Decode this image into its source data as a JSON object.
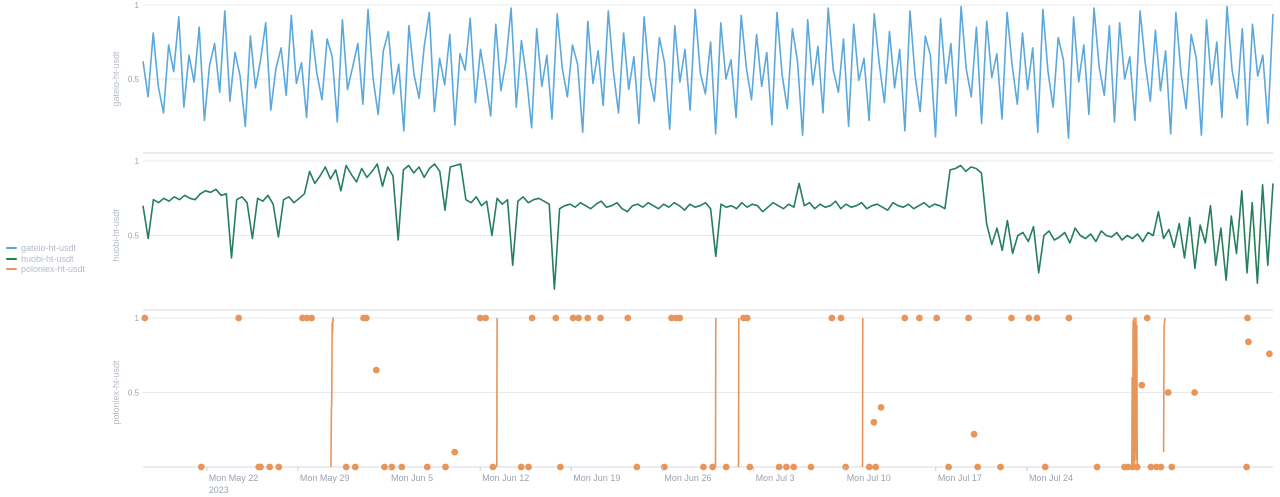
{
  "legend": {
    "items": [
      {
        "label": "gateio-ht-usdt",
        "color": "#5ba8dd"
      },
      {
        "label": "huobi-ht-usdt",
        "color": "#257f5b"
      },
      {
        "label": "poloniex-ht-usdt",
        "color": "#e8955a"
      }
    ]
  },
  "chart_data": [
    {
      "type": "line",
      "ylabel": "gateio-ht-usdt",
      "ylim": [
        0,
        1
      ],
      "yticks": [
        0.5,
        1
      ],
      "ytick_labels": [
        "0.5",
        "1"
      ],
      "series": [
        {
          "name": "gateio-ht-usdt",
          "color": "#5ba8dd",
          "values": [
            0.62,
            0.38,
            0.81,
            0.45,
            0.27,
            0.73,
            0.55,
            0.92,
            0.31,
            0.66,
            0.48,
            0.85,
            0.22,
            0.59,
            0.74,
            0.41,
            0.96,
            0.35,
            0.68,
            0.52,
            0.18,
            0.79,
            0.44,
            0.63,
            0.88,
            0.29,
            0.57,
            0.71,
            0.39,
            0.93,
            0.47,
            0.61,
            0.24,
            0.83,
            0.54,
            0.36,
            0.77,
            0.65,
            0.21,
            0.9,
            0.43,
            0.58,
            0.74,
            0.33,
            0.97,
            0.5,
            0.26,
            0.69,
            0.82,
            0.4,
            0.6,
            0.15,
            0.86,
            0.53,
            0.37,
            0.72,
            0.95,
            0.28,
            0.64,
            0.46,
            0.8,
            0.19,
            0.67,
            0.56,
            0.91,
            0.34,
            0.7,
            0.49,
            0.25,
            0.87,
            0.42,
            0.62,
            0.98,
            0.31,
            0.76,
            0.51,
            0.17,
            0.84,
            0.45,
            0.66,
            0.23,
            0.94,
            0.57,
            0.38,
            0.73,
            0.6,
            0.14,
            0.89,
            0.47,
            0.69,
            0.32,
            0.96,
            0.55,
            0.27,
            0.81,
            0.43,
            0.65,
            0.2,
            0.92,
            0.52,
            0.35,
            0.78,
            0.61,
            0.16,
            0.86,
            0.48,
            0.7,
            0.29,
            0.97,
            0.54,
            0.4,
            0.75,
            0.13,
            0.88,
            0.5,
            0.63,
            0.24,
            0.93,
            0.58,
            0.36,
            0.8,
            0.45,
            0.68,
            0.19,
            0.95,
            0.53,
            0.3,
            0.84,
            0.62,
            0.12,
            0.9,
            0.46,
            0.72,
            0.27,
            0.98,
            0.56,
            0.41,
            0.77,
            0.18,
            0.87,
            0.49,
            0.64,
            0.22,
            0.94,
            0.6,
            0.34,
            0.82,
            0.44,
            0.7,
            0.15,
            0.96,
            0.52,
            0.28,
            0.79,
            0.66,
            0.11,
            0.91,
            0.47,
            0.74,
            0.25,
            0.99,
            0.57,
            0.38,
            0.85,
            0.2,
            0.89,
            0.51,
            0.67,
            0.23,
            0.95,
            0.59,
            0.33,
            0.81,
            0.43,
            0.71,
            0.14,
            0.97,
            0.55,
            0.31,
            0.78,
            0.63,
            0.1,
            0.92,
            0.48,
            0.73,
            0.26,
            0.98,
            0.58,
            0.39,
            0.86,
            0.21,
            0.88,
            0.5,
            0.65,
            0.22,
            0.96,
            0.61,
            0.35,
            0.83,
            0.42,
            0.69,
            0.13,
            0.95,
            0.54,
            0.3,
            0.8,
            0.64,
            0.12,
            0.9,
            0.46,
            0.75,
            0.24,
            0.99,
            0.56,
            0.37,
            0.84,
            0.19,
            0.87,
            0.52,
            0.66,
            0.2,
            0.94
          ]
        }
      ],
      "grid": true
    },
    {
      "type": "line",
      "ylabel": "huobi-ht-usdt",
      "ylim": [
        0,
        1
      ],
      "yticks": [
        0.5,
        1
      ],
      "ytick_labels": [
        "0.5",
        "1"
      ],
      "series": [
        {
          "name": "huobi-ht-usdt",
          "color": "#257f5b",
          "values": [
            0.7,
            0.48,
            0.74,
            0.72,
            0.75,
            0.73,
            0.76,
            0.74,
            0.77,
            0.75,
            0.74,
            0.78,
            0.8,
            0.79,
            0.81,
            0.77,
            0.78,
            0.35,
            0.74,
            0.76,
            0.72,
            0.48,
            0.75,
            0.73,
            0.77,
            0.71,
            0.49,
            0.74,
            0.76,
            0.72,
            0.75,
            0.78,
            0.93,
            0.85,
            0.9,
            0.96,
            0.88,
            0.94,
            0.8,
            0.97,
            0.91,
            0.86,
            0.95,
            0.89,
            0.93,
            0.98,
            0.83,
            0.96,
            0.9,
            0.47,
            0.94,
            0.97,
            0.92,
            0.96,
            0.89,
            0.95,
            0.98,
            0.93,
            0.67,
            0.96,
            0.97,
            0.98,
            0.74,
            0.72,
            0.76,
            0.7,
            0.73,
            0.5,
            0.75,
            0.71,
            0.74,
            0.3,
            0.73,
            0.76,
            0.72,
            0.74,
            0.75,
            0.73,
            0.71,
            0.14,
            0.68,
            0.7,
            0.71,
            0.69,
            0.72,
            0.7,
            0.68,
            0.71,
            0.73,
            0.69,
            0.7,
            0.72,
            0.68,
            0.66,
            0.7,
            0.71,
            0.69,
            0.72,
            0.7,
            0.68,
            0.71,
            0.69,
            0.72,
            0.7,
            0.67,
            0.71,
            0.69,
            0.7,
            0.72,
            0.68,
            0.36,
            0.71,
            0.69,
            0.7,
            0.68,
            0.72,
            0.69,
            0.71,
            0.7,
            0.66,
            0.69,
            0.72,
            0.7,
            0.68,
            0.71,
            0.69,
            0.85,
            0.7,
            0.72,
            0.68,
            0.71,
            0.69,
            0.7,
            0.73,
            0.68,
            0.71,
            0.69,
            0.7,
            0.72,
            0.68,
            0.7,
            0.71,
            0.69,
            0.67,
            0.72,
            0.7,
            0.69,
            0.71,
            0.68,
            0.7,
            0.72,
            0.69,
            0.71,
            0.7,
            0.68,
            0.94,
            0.95,
            0.97,
            0.93,
            0.96,
            0.95,
            0.92,
            0.58,
            0.44,
            0.55,
            0.4,
            0.6,
            0.38,
            0.5,
            0.52,
            0.46,
            0.56,
            0.25,
            0.5,
            0.53,
            0.47,
            0.49,
            0.52,
            0.45,
            0.55,
            0.5,
            0.48,
            0.51,
            0.46,
            0.53,
            0.5,
            0.49,
            0.52,
            0.47,
            0.5,
            0.48,
            0.51,
            0.46,
            0.52,
            0.5,
            0.66,
            0.48,
            0.54,
            0.42,
            0.58,
            0.35,
            0.62,
            0.28,
            0.57,
            0.45,
            0.7,
            0.3,
            0.55,
            0.2,
            0.63,
            0.38,
            0.8,
            0.25,
            0.72,
            0.18,
            0.84,
            0.3,
            0.85
          ]
        }
      ],
      "grid": true
    },
    {
      "type": "line",
      "ylabel": "poloniex-ht-usdt",
      "ylim": [
        0,
        1
      ],
      "yticks": [
        0.5,
        1
      ],
      "ytick_labels": [
        "0.5",
        "1"
      ],
      "series": [
        {
          "name": "poloniex-ht-usdt",
          "color": "#e8955a",
          "segments": [
            [
              [
                20.62,
                0
              ],
              [
                20.67,
                0.4
              ],
              [
                20.71,
                0.42
              ],
              [
                20.76,
                0.97
              ],
              [
                20.8,
                0.9
              ],
              [
                20.85,
                1
              ],
              [
                20.9,
                0.98
              ]
            ],
            [
              [
                38.82,
                0
              ],
              [
                38.86,
                1
              ]
            ],
            [
              [
                62.82,
                0
              ],
              [
                62.86,
                1
              ]
            ],
            [
              [
                65.35,
                0
              ],
              [
                65.38,
                1
              ]
            ],
            [
              [
                78.95,
                0
              ],
              [
                78.99,
                1
              ]
            ],
            [
              [
                108.5,
                0
              ],
              [
                108.55,
                0.6
              ],
              [
                108.6,
                0.02
              ],
              [
                108.65,
                0.98
              ],
              [
                108.7,
                0.05
              ],
              [
                108.75,
                1
              ],
              [
                108.8,
                0
              ],
              [
                108.85,
                0.97
              ],
              [
                108.9,
                0.1
              ],
              [
                108.95,
                1
              ],
              [
                109.0,
                0.05
              ],
              [
                109.05,
                0.95
              ],
              [
                109.1,
                0
              ]
            ],
            [
              [
                112.0,
                0.1
              ],
              [
                112.05,
                0.95
              ],
              [
                112.1,
                0.98
              ],
              [
                112.15,
                1
              ]
            ]
          ],
          "points": [
            [
              0.2,
              1
            ],
            [
              6.4,
              0
            ],
            [
              10.5,
              1
            ],
            [
              12.7,
              0
            ],
            [
              12.9,
              0
            ],
            [
              13.9,
              0
            ],
            [
              14.9,
              0
            ],
            [
              17.5,
              1
            ],
            [
              18.0,
              1
            ],
            [
              18.5,
              1
            ],
            [
              22.3,
              0
            ],
            [
              23.3,
              0
            ],
            [
              24.2,
              1
            ],
            [
              24.5,
              1
            ],
            [
              25.6,
              0.65
            ],
            [
              26.5,
              0
            ],
            [
              27.3,
              0
            ],
            [
              28.4,
              0
            ],
            [
              31.2,
              0
            ],
            [
              33.2,
              0
            ],
            [
              34.2,
              0.1
            ],
            [
              37.0,
              1
            ],
            [
              37.6,
              1
            ],
            [
              38.4,
              0
            ],
            [
              41.5,
              0
            ],
            [
              42.3,
              0
            ],
            [
              42.7,
              1
            ],
            [
              45.3,
              1
            ],
            [
              45.8,
              0
            ],
            [
              47.2,
              1
            ],
            [
              47.8,
              1
            ],
            [
              48.8,
              1
            ],
            [
              50.2,
              1
            ],
            [
              53.2,
              1
            ],
            [
              54.2,
              0
            ],
            [
              57.2,
              0
            ],
            [
              58.0,
              1
            ],
            [
              58.5,
              1
            ],
            [
              58.9,
              1
            ],
            [
              61.5,
              0
            ],
            [
              62.5,
              0
            ],
            [
              64.0,
              0
            ],
            [
              65.9,
              1
            ],
            [
              66.3,
              1
            ],
            [
              66.6,
              0
            ],
            [
              69.8,
              0
            ],
            [
              70.6,
              0
            ],
            [
              71.4,
              0
            ],
            [
              73.3,
              0
            ],
            [
              75.6,
              1
            ],
            [
              76.6,
              1
            ],
            [
              77.1,
              0
            ],
            [
              79.7,
              0
            ],
            [
              80.2,
              0.3
            ],
            [
              80.4,
              0
            ],
            [
              81.0,
              0.4
            ],
            [
              83.6,
              1
            ],
            [
              85.2,
              1
            ],
            [
              87.1,
              1
            ],
            [
              88.4,
              0
            ],
            [
              90.6,
              1
            ],
            [
              91.2,
              0.22
            ],
            [
              91.6,
              0
            ],
            [
              94.1,
              0
            ],
            [
              95.3,
              1
            ],
            [
              97.2,
              1
            ],
            [
              98.1,
              1
            ],
            [
              99.0,
              0
            ],
            [
              101.6,
              1
            ],
            [
              104.7,
              0
            ],
            [
              107.7,
              0
            ],
            [
              108.1,
              0
            ],
            [
              108.6,
              0
            ],
            [
              109.1,
              0
            ],
            [
              109.6,
              0.55
            ],
            [
              110.2,
              1
            ],
            [
              110.6,
              0
            ],
            [
              111.2,
              0
            ],
            [
              111.7,
              0
            ],
            [
              112.5,
              0.5
            ],
            [
              112.9,
              0
            ],
            [
              115.4,
              0.5
            ],
            [
              121.2,
              1
            ],
            [
              121.3,
              0.84
            ],
            [
              121.1,
              0
            ],
            [
              123.6,
              0.76
            ]
          ]
        }
      ],
      "grid": true
    }
  ],
  "xaxis": {
    "range_days": [
      0,
      124
    ],
    "ticks": [
      {
        "day": 7,
        "label": "Mon May 22",
        "sublabel": "2023"
      },
      {
        "day": 17,
        "label": "Mon May 29"
      },
      {
        "day": 27,
        "label": "Mon Jun 5"
      },
      {
        "day": 37,
        "label": "Mon Jun 12"
      },
      {
        "day": 47,
        "label": "Mon Jun 19"
      },
      {
        "day": 57,
        "label": "Mon Jun 26"
      },
      {
        "day": 67,
        "label": "Mon Jul 3"
      },
      {
        "day": 77,
        "label": "Mon Jul 10"
      },
      {
        "day": 87,
        "label": "Mon Jul 17"
      },
      {
        "day": 97,
        "label": "Mon Jul 24"
      }
    ]
  }
}
